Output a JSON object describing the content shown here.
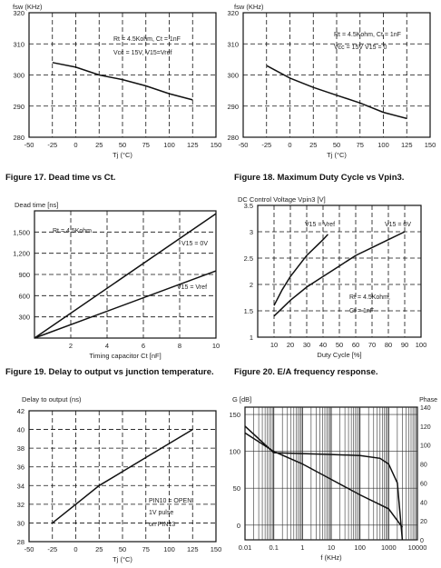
{
  "captions": {
    "fig17": "Figure 17. Dead time vs Ct.",
    "fig18": "Figure 18. Maximum Duty Cycle vs Vpin3.",
    "fig19": "Figure 19. Delay to output vs junction temperature.",
    "fig20": "Figure 20. E/A frequency response."
  },
  "chart_data": [
    {
      "id": "fsw-vs-tj-1",
      "type": "line",
      "title": "",
      "ylabel": "fsw (KHz)",
      "xlabel": "Tj (°C)",
      "xlim": [
        -50,
        150
      ],
      "ylim": [
        280,
        320
      ],
      "xticks": [
        -50,
        -25,
        0,
        25,
        50,
        75,
        100,
        125,
        150
      ],
      "yticks": [
        280,
        290,
        300,
        310,
        320
      ],
      "grid": "dashed",
      "annotations": [
        "Rt = 4.5Kohm, Ct = 1nF",
        "Vcc = 15V, V15=Vref"
      ],
      "series": [
        {
          "name": "",
          "x": [
            -25,
            0,
            25,
            50,
            75,
            100,
            125
          ],
          "y": [
            304,
            302.5,
            300,
            298.5,
            296.5,
            294,
            292
          ]
        }
      ]
    },
    {
      "id": "fsw-vs-tj-2",
      "type": "line",
      "title": "",
      "ylabel": "fsw (KHz)",
      "xlabel": "Tj (°C)",
      "xlim": [
        -50,
        150
      ],
      "ylim": [
        280,
        320
      ],
      "xticks": [
        -50,
        -25,
        0,
        25,
        50,
        75,
        100,
        125,
        150
      ],
      "yticks": [
        280,
        290,
        300,
        310,
        320
      ],
      "grid": "dashed",
      "annotations": [
        "Rt = 4.5Kohm, Ct = 1nF",
        "Vcc = 15V V15 = 0"
      ],
      "series": [
        {
          "name": "",
          "x": [
            -25,
            0,
            25,
            50,
            75,
            100,
            125
          ],
          "y": [
            303,
            299,
            296,
            293.5,
            291,
            288,
            286
          ]
        }
      ]
    },
    {
      "id": "dead-time-vs-ct",
      "type": "line",
      "title": "",
      "ylabel": "Dead time [ns]",
      "xlabel": "Timing capacitor Ct [nF]",
      "xlim": [
        0,
        10
      ],
      "ylim": [
        0,
        1800
      ],
      "xticks": [
        2,
        4,
        6,
        8,
        10
      ],
      "yticks": [
        300,
        600,
        900,
        1200,
        1500
      ],
      "ytick_labels": [
        "300",
        "600",
        "900",
        "1,200",
        "1,500"
      ],
      "grid": "dashed",
      "annotations": [
        "Rt = 4.5Kohm"
      ],
      "series": [
        {
          "name": "V15 = 0V",
          "x": [
            0,
            10
          ],
          "y": [
            0,
            1760
          ]
        },
        {
          "name": "V15 = Vref",
          "x": [
            0,
            10
          ],
          "y": [
            0,
            950
          ]
        }
      ]
    },
    {
      "id": "max-duty-vs-vpin3",
      "type": "line",
      "title": "DC Control Voltage Vpin3 [V]",
      "ylabel": "",
      "xlabel": "Duty Cycle [%]",
      "xlim": [
        0,
        100
      ],
      "ylim": [
        1,
        3.5
      ],
      "xticks": [
        10,
        20,
        30,
        40,
        50,
        60,
        70,
        80,
        90,
        100
      ],
      "yticks": [
        1,
        1.5,
        2,
        2.5,
        3,
        3.5
      ],
      "grid": "dashed",
      "annotations": [
        "Rt = 4.5Kohm,",
        "Ct = 1nF"
      ],
      "series": [
        {
          "name": "V15 = Vref",
          "x": [
            10,
            15,
            20,
            25,
            30,
            35,
            40,
            43
          ],
          "y": [
            1.6,
            1.9,
            2.15,
            2.35,
            2.55,
            2.7,
            2.85,
            2.95
          ]
        },
        {
          "name": "V15 = 0V",
          "x": [
            10,
            20,
            30,
            40,
            50,
            60,
            70,
            80,
            90
          ],
          "y": [
            1.4,
            1.7,
            1.95,
            2.15,
            2.35,
            2.55,
            2.7,
            2.85,
            3.0
          ]
        }
      ]
    },
    {
      "id": "delay-vs-tj",
      "type": "line",
      "title": "",
      "ylabel": "Delay to output (ns)",
      "xlabel": "Tj (°C)",
      "xlim": [
        -50,
        150
      ],
      "ylim": [
        28,
        42
      ],
      "xticks": [
        -50,
        -25,
        0,
        25,
        50,
        75,
        100,
        125,
        150
      ],
      "yticks": [
        28,
        30,
        32,
        34,
        36,
        38,
        40,
        42
      ],
      "grid": "dashed",
      "annotations": [
        "PIN10 = OPEN",
        "1V pulse",
        "on PIN13"
      ],
      "series": [
        {
          "name": "",
          "x": [
            -25,
            0,
            25,
            50,
            75,
            100,
            125
          ],
          "y": [
            30,
            32,
            34,
            35.5,
            37,
            38.5,
            40
          ]
        }
      ]
    },
    {
      "id": "ea-frequency-response",
      "type": "line",
      "title": "",
      "ylabel": "G [dB]",
      "ylabel_right": "Phase",
      "xlabel": "f (KHz)",
      "xscale": "log",
      "xlim": [
        0.01,
        10000
      ],
      "ylim": [
        -20,
        160
      ],
      "ylim_right": [
        0,
        140
      ],
      "xticks": [
        0.01,
        0.1,
        1,
        10,
        100,
        1000,
        10000
      ],
      "xtick_labels": [
        "0.01",
        "0.1",
        "1",
        "10",
        "100",
        "1000",
        "10000"
      ],
      "yticks": [
        0,
        50,
        100,
        150
      ],
      "yticks_right": [
        0,
        20,
        40,
        60,
        80,
        100,
        120,
        140
      ],
      "grid": "solid",
      "series": [
        {
          "name": "Gain",
          "x": [
            0.01,
            0.1,
            1,
            10,
            100,
            1000,
            3000
          ],
          "y": [
            125,
            100,
            83,
            62,
            41,
            22,
            -3
          ]
        },
        {
          "name": "Phase",
          "axis": "right",
          "x": [
            0.01,
            0.1,
            1,
            10,
            100,
            500,
            1000,
            2000,
            3000
          ],
          "y": [
            120,
            92,
            91,
            90,
            89,
            86,
            80,
            60,
            0
          ]
        }
      ]
    }
  ]
}
